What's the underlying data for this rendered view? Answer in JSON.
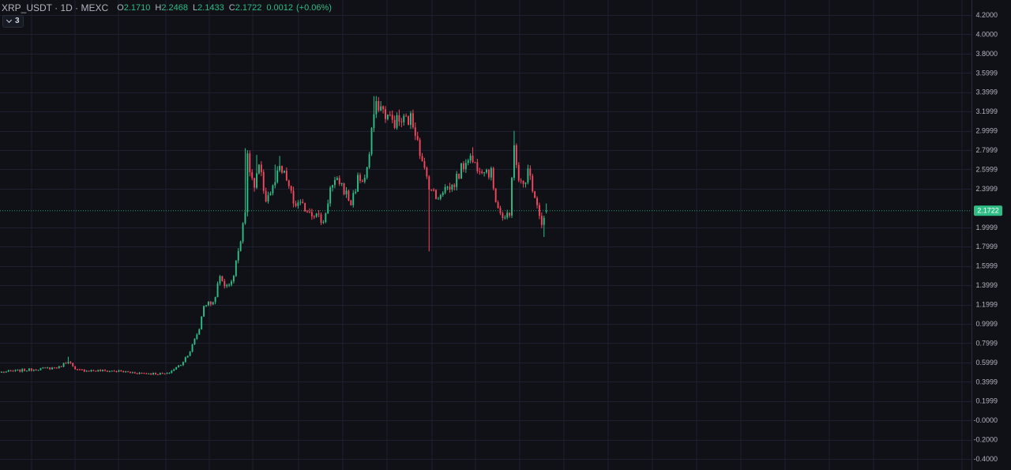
{
  "legend": {
    "symbol": "XRP_USDT · 1D · MEXC",
    "open_key": "O",
    "open": "2.1710",
    "high_key": "H",
    "high": "2.2468",
    "low_key": "L",
    "low": "2.1433",
    "close_key": "C",
    "close": "2.1722",
    "change": "0.0012",
    "change_pct": "(+0.06%)"
  },
  "collapse_button": {
    "count": "3"
  },
  "price_tag": {
    "label": "2.1722",
    "value": 2.1722
  },
  "colors": {
    "background": "#0f1117",
    "grid": "#1c2030",
    "up": "#2ebd85",
    "down": "#f6465d",
    "text": "#b2b5be",
    "price_line": "#2ebd85"
  },
  "chart_data": {
    "type": "candlestick",
    "symbol": "XRP_USDT",
    "interval": "1D",
    "exchange": "MEXC",
    "ylim": [
      -0.4,
      4.2
    ],
    "y_ticks": [
      {
        "v": 4.2,
        "label": "4.2000"
      },
      {
        "v": 4.0,
        "label": "4.0000"
      },
      {
        "v": 3.8,
        "label": "3.8000"
      },
      {
        "v": 3.6,
        "label": "3.5999"
      },
      {
        "v": 3.4,
        "label": "3.3999"
      },
      {
        "v": 3.2,
        "label": "3.1999"
      },
      {
        "v": 3.0,
        "label": "2.9999"
      },
      {
        "v": 2.8,
        "label": "2.7999"
      },
      {
        "v": 2.6,
        "label": "2.5999"
      },
      {
        "v": 2.4,
        "label": "2.3999"
      },
      {
        "v": 2.0,
        "label": "1.9999"
      },
      {
        "v": 1.8,
        "label": "1.7999"
      },
      {
        "v": 1.6,
        "label": "1.5999"
      },
      {
        "v": 1.4,
        "label": "1.3999"
      },
      {
        "v": 1.2,
        "label": "1.1999"
      },
      {
        "v": 1.0,
        "label": "0.9999"
      },
      {
        "v": 0.8,
        "label": "0.7999"
      },
      {
        "v": 0.6,
        "label": "0.5999"
      },
      {
        "v": 0.4,
        "label": "0.3999"
      },
      {
        "v": 0.2,
        "label": "0.1999"
      },
      {
        "v": 0.0,
        "label": "-0.0000"
      },
      {
        "v": -0.2,
        "label": "-0.2000"
      },
      {
        "v": -0.4,
        "label": "-0.4000"
      }
    ],
    "grid": true,
    "last_price": 2.1722,
    "anchors": [
      [
        0,
        0.5
      ],
      [
        10,
        0.52
      ],
      [
        20,
        0.54
      ],
      [
        25,
        0.55
      ],
      [
        29,
        0.62
      ],
      [
        32,
        0.52
      ],
      [
        50,
        0.51
      ],
      [
        60,
        0.49
      ],
      [
        72,
        0.48
      ],
      [
        78,
        0.58
      ],
      [
        82,
        0.72
      ],
      [
        86,
        0.95
      ],
      [
        88,
        1.2
      ],
      [
        92,
        1.22
      ],
      [
        95,
        1.48
      ],
      [
        98,
        1.38
      ],
      [
        101,
        1.5
      ],
      [
        104,
        1.9
      ],
      [
        106,
        2.2
      ],
      [
        107,
        2.7
      ],
      [
        110,
        2.4
      ],
      [
        112,
        2.62
      ],
      [
        115,
        2.3
      ],
      [
        118,
        2.4
      ],
      [
        121,
        2.6
      ],
      [
        124,
        2.5
      ],
      [
        127,
        2.25
      ],
      [
        132,
        2.2
      ],
      [
        136,
        2.15
      ],
      [
        140,
        2.05
      ],
      [
        143,
        2.4
      ],
      [
        147,
        2.48
      ],
      [
        152,
        2.25
      ],
      [
        155,
        2.5
      ],
      [
        158,
        2.5
      ],
      [
        160,
        2.75
      ],
      [
        162,
        3.18
      ],
      [
        164,
        3.28
      ],
      [
        166,
        3.2
      ],
      [
        170,
        3.1
      ],
      [
        174,
        3.1
      ],
      [
        178,
        3.12
      ],
      [
        181,
        2.95
      ],
      [
        183,
        2.65
      ],
      [
        186,
        2.45
      ],
      [
        189,
        2.3
      ],
      [
        192,
        2.4
      ],
      [
        196,
        2.42
      ],
      [
        200,
        2.6
      ],
      [
        203,
        2.75
      ],
      [
        206,
        2.65
      ],
      [
        210,
        2.62
      ],
      [
        213,
        2.55
      ],
      [
        215,
        2.3
      ],
      [
        218,
        2.1
      ],
      [
        221,
        2.1
      ],
      [
        223,
        2.9
      ],
      [
        225,
        2.45
      ],
      [
        227,
        2.45
      ],
      [
        229,
        2.58
      ],
      [
        232,
        2.35
      ],
      [
        235,
        2.05
      ],
      [
        237,
        2.12
      ]
    ],
    "spikes": [
      {
        "i": 29,
        "h": 0.66
      },
      {
        "i": 106,
        "h": 2.82
      },
      {
        "i": 111,
        "h": 2.75
      },
      {
        "i": 119,
        "h": 2.65
      },
      {
        "i": 121,
        "h": 2.74
      },
      {
        "i": 162,
        "h": 3.36
      },
      {
        "i": 164,
        "h": 3.35
      },
      {
        "i": 173,
        "h": 3.22
      },
      {
        "i": 186,
        "l": 1.75
      },
      {
        "i": 205,
        "h": 2.83
      },
      {
        "i": 223,
        "h": 3.0
      },
      {
        "i": 236,
        "l": 1.9
      }
    ]
  }
}
